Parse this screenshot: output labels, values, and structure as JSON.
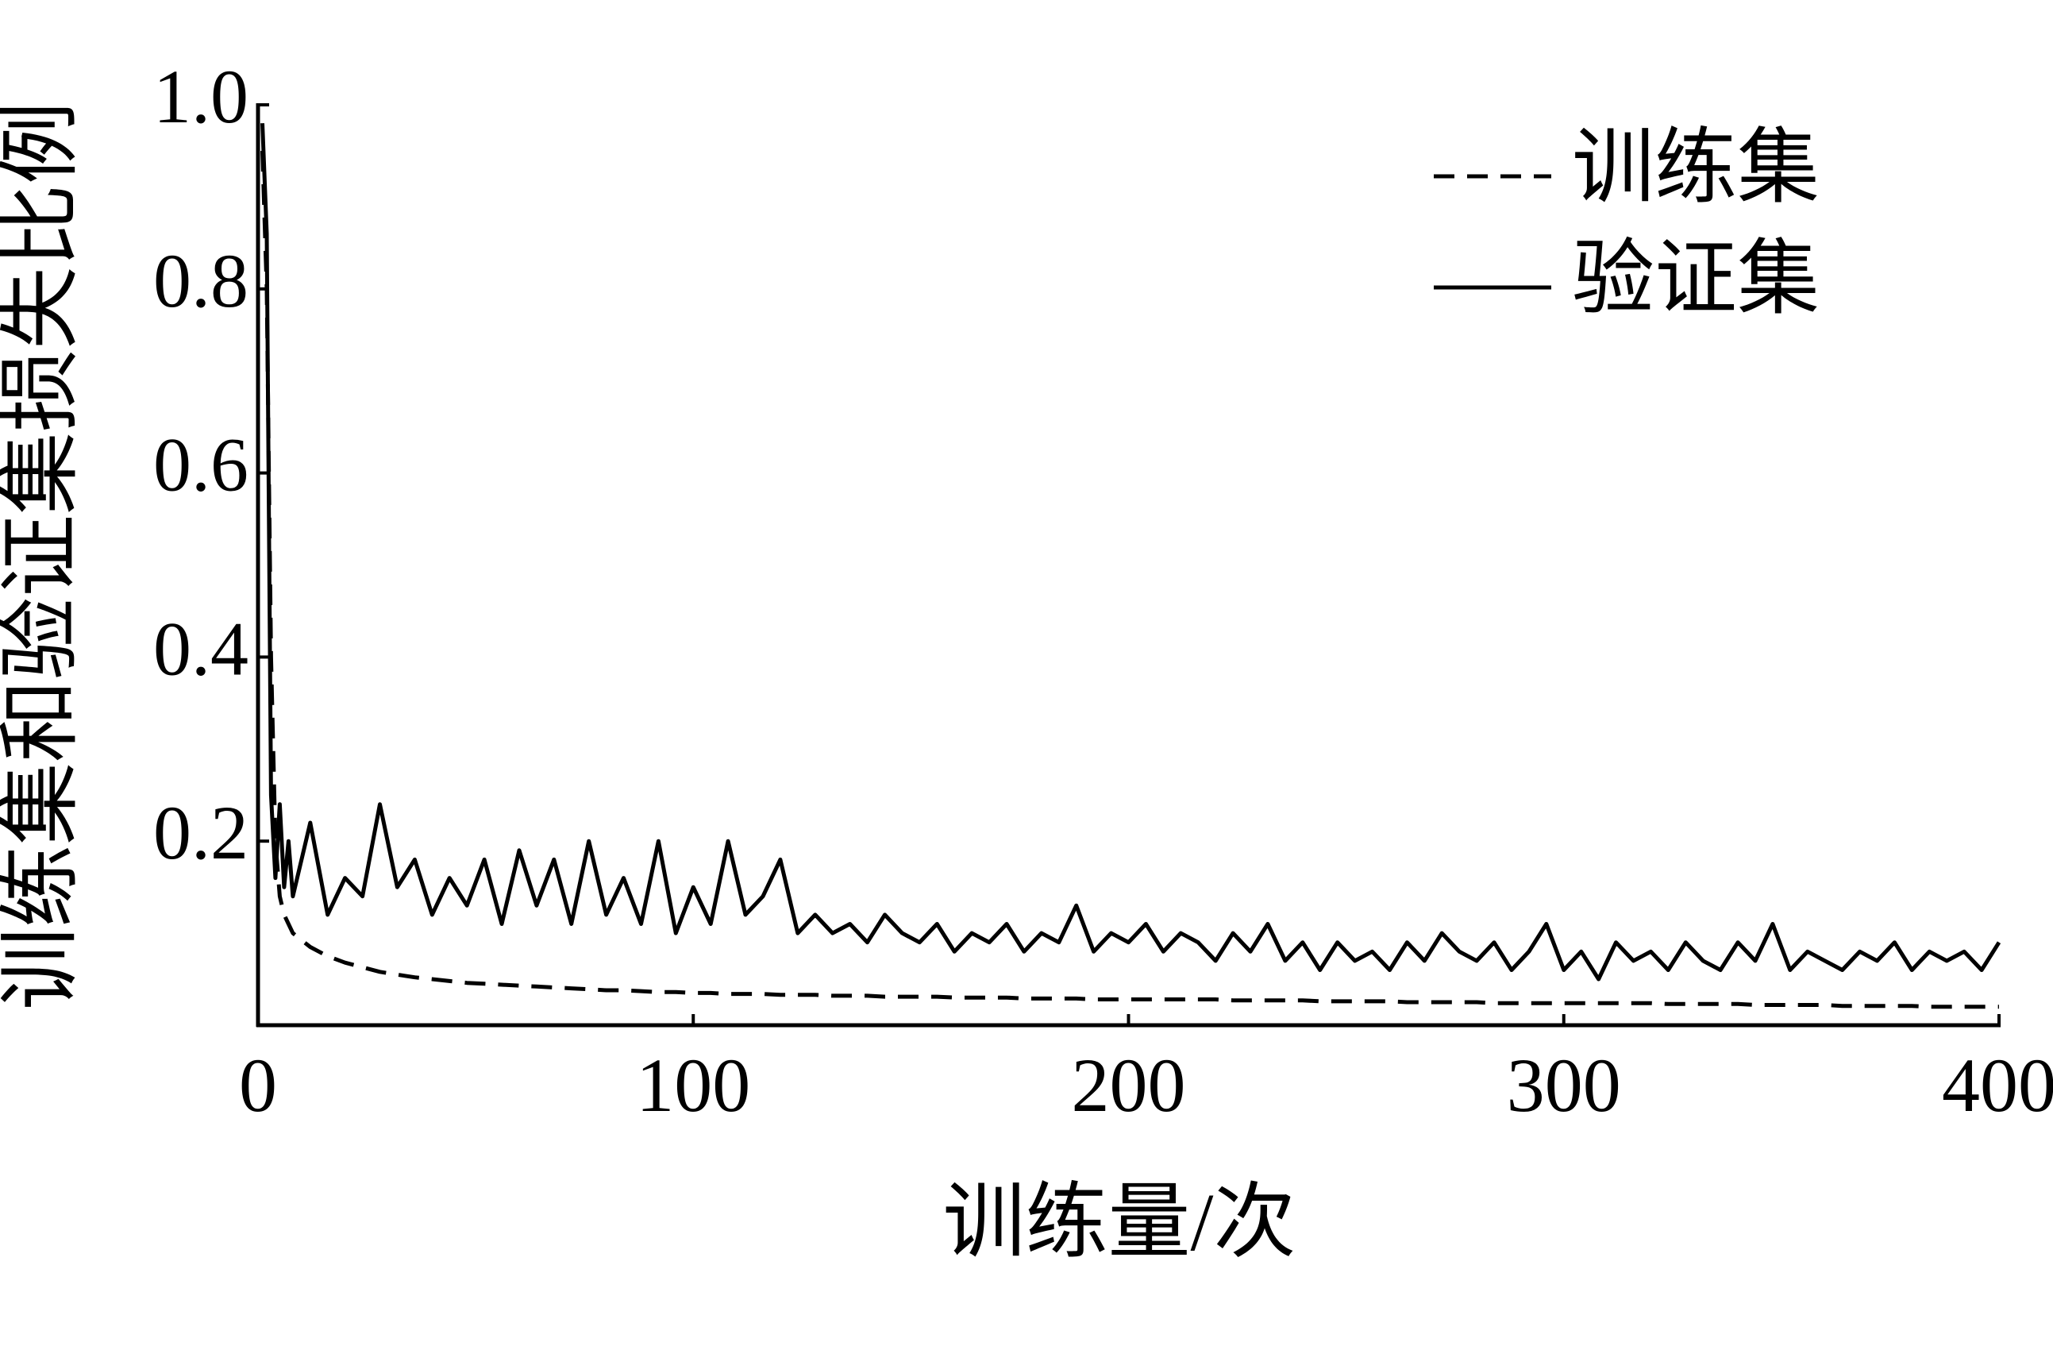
{
  "chart_data": {
    "type": "line",
    "x_label": "训练量/次",
    "y_label": "训练集和验证集损失比例",
    "x": [
      1,
      2,
      3,
      4,
      5,
      6,
      7,
      8,
      12,
      16,
      20,
      24,
      28,
      32,
      36,
      40,
      44,
      48,
      52,
      56,
      60,
      64,
      68,
      72,
      76,
      80,
      84,
      88,
      92,
      96,
      100,
      104,
      108,
      112,
      116,
      120,
      124,
      128,
      132,
      136,
      140,
      144,
      148,
      152,
      156,
      160,
      164,
      168,
      172,
      176,
      180,
      184,
      188,
      192,
      196,
      200,
      204,
      208,
      212,
      216,
      220,
      224,
      228,
      232,
      236,
      240,
      244,
      248,
      252,
      256,
      260,
      264,
      268,
      272,
      276,
      280,
      284,
      288,
      292,
      296,
      300,
      304,
      308,
      312,
      316,
      320,
      324,
      328,
      332,
      336,
      340,
      344,
      348,
      352,
      356,
      360,
      364,
      368,
      372,
      376,
      380,
      384,
      388,
      392,
      396,
      400
    ],
    "series": [
      {
        "name": "训练集",
        "color": "#000000",
        "dash": true,
        "values": [
          0.95,
          0.8,
          0.4,
          0.2,
          0.14,
          0.12,
          0.11,
          0.1,
          0.085,
          0.075,
          0.068,
          0.063,
          0.058,
          0.055,
          0.052,
          0.05,
          0.048,
          0.046,
          0.045,
          0.044,
          0.043,
          0.042,
          0.041,
          0.04,
          0.039,
          0.038,
          0.038,
          0.037,
          0.036,
          0.036,
          0.035,
          0.035,
          0.034,
          0.034,
          0.034,
          0.033,
          0.033,
          0.033,
          0.032,
          0.032,
          0.032,
          0.031,
          0.031,
          0.031,
          0.031,
          0.03,
          0.03,
          0.03,
          0.03,
          0.029,
          0.029,
          0.029,
          0.029,
          0.028,
          0.028,
          0.028,
          0.028,
          0.028,
          0.028,
          0.028,
          0.028,
          0.027,
          0.027,
          0.027,
          0.027,
          0.027,
          0.026,
          0.026,
          0.026,
          0.026,
          0.026,
          0.025,
          0.025,
          0.025,
          0.025,
          0.025,
          0.024,
          0.024,
          0.024,
          0.024,
          0.024,
          0.024,
          0.024,
          0.024,
          0.024,
          0.024,
          0.023,
          0.023,
          0.023,
          0.023,
          0.023,
          0.022,
          0.022,
          0.022,
          0.022,
          0.022,
          0.021,
          0.021,
          0.021,
          0.021,
          0.021,
          0.02,
          0.02,
          0.02,
          0.02,
          0.02
        ]
      },
      {
        "name": "验证集",
        "color": "#000000",
        "dash": false,
        "values": [
          0.98,
          0.86,
          0.25,
          0.16,
          0.24,
          0.15,
          0.2,
          0.14,
          0.22,
          0.12,
          0.16,
          0.14,
          0.24,
          0.15,
          0.18,
          0.12,
          0.16,
          0.13,
          0.18,
          0.11,
          0.19,
          0.13,
          0.18,
          0.11,
          0.2,
          0.12,
          0.16,
          0.11,
          0.2,
          0.1,
          0.15,
          0.11,
          0.2,
          0.12,
          0.14,
          0.18,
          0.1,
          0.12,
          0.1,
          0.11,
          0.09,
          0.12,
          0.1,
          0.09,
          0.11,
          0.08,
          0.1,
          0.09,
          0.11,
          0.08,
          0.1,
          0.09,
          0.13,
          0.08,
          0.1,
          0.09,
          0.11,
          0.08,
          0.1,
          0.09,
          0.07,
          0.1,
          0.08,
          0.11,
          0.07,
          0.09,
          0.06,
          0.09,
          0.07,
          0.08,
          0.06,
          0.09,
          0.07,
          0.1,
          0.08,
          0.07,
          0.09,
          0.06,
          0.08,
          0.11,
          0.06,
          0.08,
          0.05,
          0.09,
          0.07,
          0.08,
          0.06,
          0.09,
          0.07,
          0.06,
          0.09,
          0.07,
          0.11,
          0.06,
          0.08,
          0.07,
          0.06,
          0.08,
          0.07,
          0.09,
          0.06,
          0.08,
          0.07,
          0.08,
          0.06,
          0.09
        ]
      }
    ],
    "xlim": [
      0,
      400
    ],
    "xticks": [
      0,
      100,
      200,
      300,
      400
    ],
    "ylim": [
      0,
      1
    ],
    "yticks": [
      0.2,
      0.4,
      0.6,
      0.8,
      {
        "value": 1,
        "label": "1.0"
      }
    ],
    "grid": false,
    "legend": "upper right"
  }
}
